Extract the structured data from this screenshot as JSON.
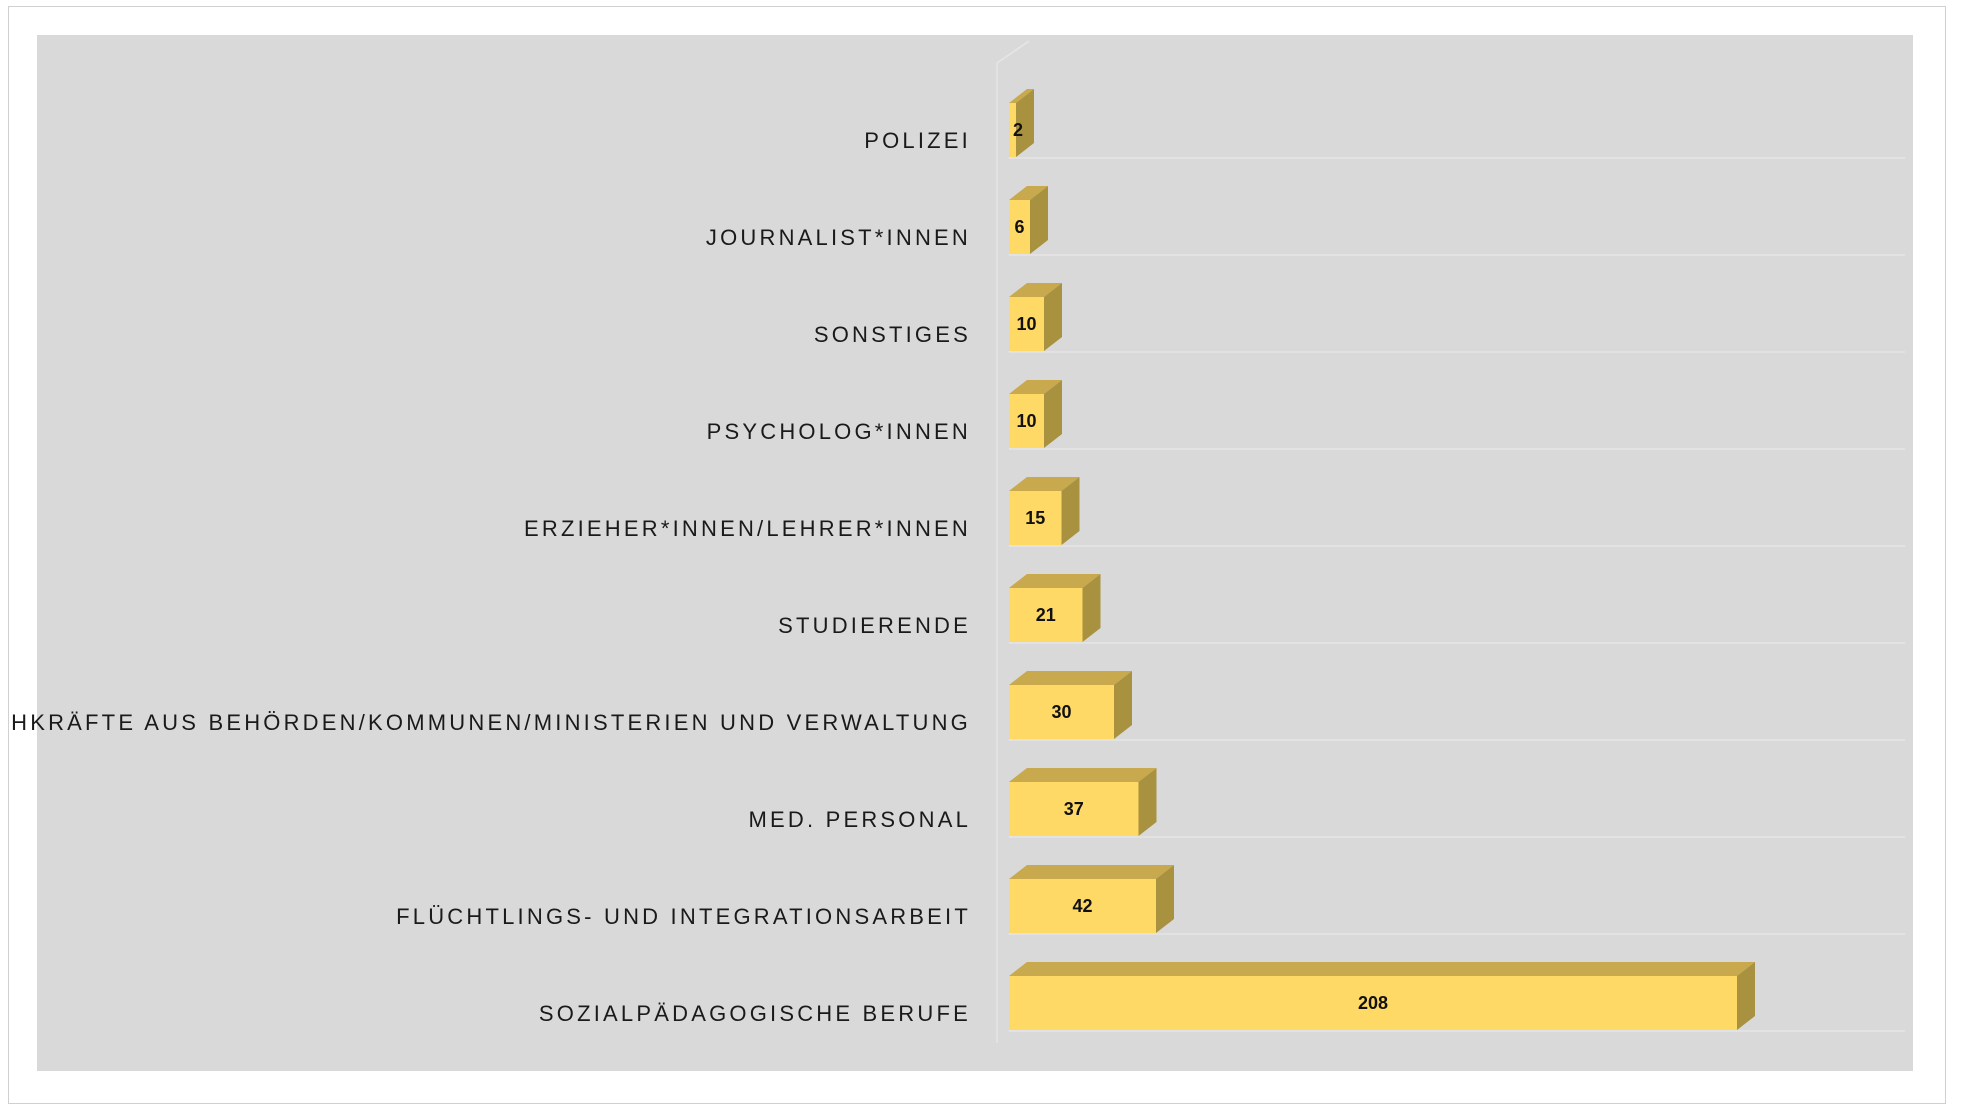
{
  "chart_data": {
    "type": "bar",
    "orientation": "horizontal",
    "three_d": true,
    "categories": [
      "POLIZEI",
      "JOURNALIST*INNEN",
      "SONSTIGES",
      "PSYCHOLOG*INNEN",
      "ERZIEHER*INNEN/LEHRER*INNEN",
      "STUDIERENDE",
      "FACHKRÄFTE AUS BEHÖRDEN/KOMMUNEN/MINISTERIEN UND VERWALTUNG",
      "MED. PERSONAL",
      "FLÜCHTLINGS- UND INTEGRATIONSARBEIT",
      "SOZIALPÄDAGOGISCHE BERUFE"
    ],
    "values": [
      2,
      6,
      10,
      10,
      15,
      21,
      30,
      37,
      42,
      208
    ],
    "data_labels": true,
    "title": "",
    "xlabel": "",
    "ylabel": "",
    "xlim": [
      0,
      260
    ],
    "grid": true,
    "legend": "none",
    "colors": {
      "plot_background": "#d9d9d9",
      "bar_front": "#ffd966",
      "bar_top": "#c9a94e",
      "bar_side": "#a8913f",
      "gridline": "#e6e6e6",
      "frame_border": "#d0d0d0"
    }
  }
}
